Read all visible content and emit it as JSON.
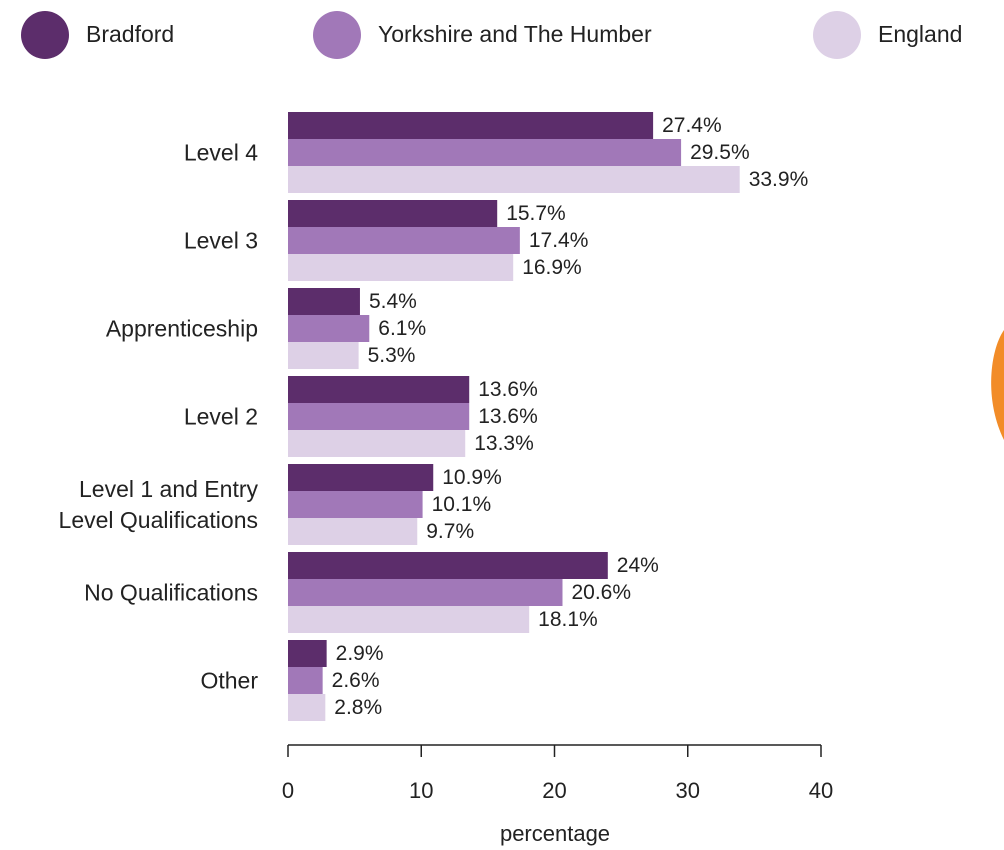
{
  "chart_data": {
    "type": "hbar",
    "xlabel": "percentage",
    "categories": [
      "Level 4",
      "Level 3",
      "Apprenticeship",
      "Level 2",
      "Level 1 and Entry\nLevel Qualifications",
      "No Qualifications",
      "Other"
    ],
    "series": [
      {
        "name": "Bradford",
        "color": "#5c2d6b",
        "values": [
          27.4,
          15.7,
          5.4,
          13.6,
          10.9,
          24,
          2.9
        ],
        "value_labels": [
          "27.4%",
          "15.7%",
          "5.4%",
          "13.6%",
          "10.9%",
          "24%",
          "2.9%"
        ]
      },
      {
        "name": "Yorkshire and The Humber",
        "color": "#a178b8",
        "values": [
          29.5,
          17.4,
          6.1,
          13.6,
          10.1,
          20.6,
          2.6
        ],
        "value_labels": [
          "29.5%",
          "17.4%",
          "6.1%",
          "13.6%",
          "10.1%",
          "20.6%",
          "2.6%"
        ]
      },
      {
        "name": "England",
        "color": "#ddd0e6",
        "values": [
          33.9,
          16.9,
          5.3,
          13.3,
          9.7,
          18.1,
          2.8
        ],
        "value_labels": [
          "33.9%",
          "16.9%",
          "5.3%",
          "13.3%",
          "9.7%",
          "18.1%",
          "2.8%"
        ]
      }
    ],
    "xlim": [
      0,
      40
    ],
    "xticks": [
      0,
      10,
      20,
      30,
      40
    ]
  }
}
